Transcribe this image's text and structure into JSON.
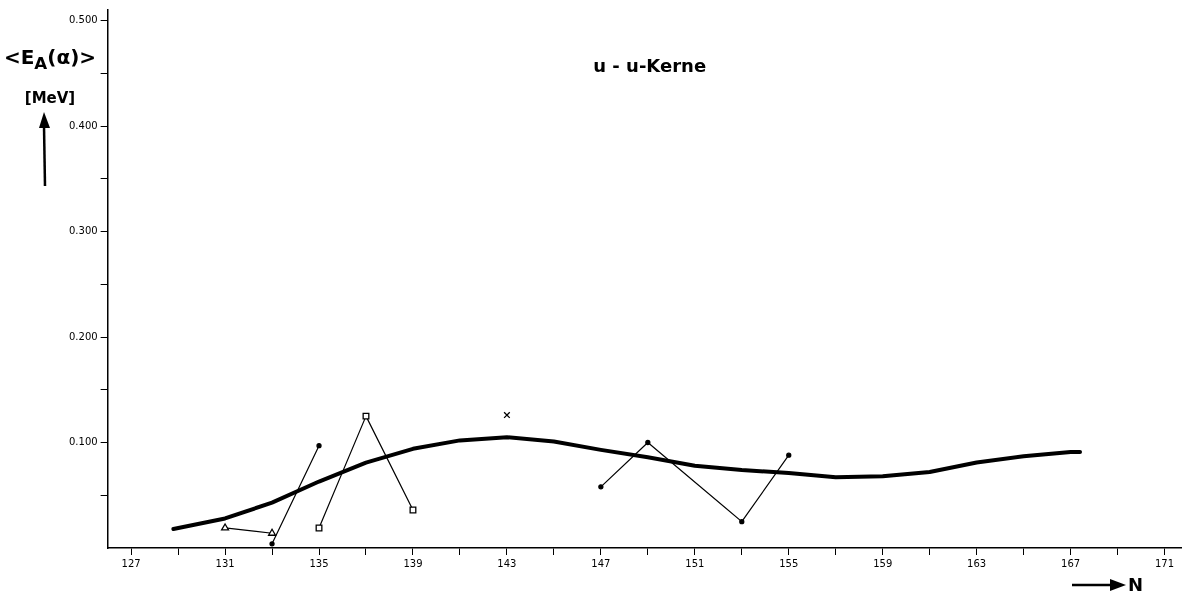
{
  "chart_data": {
    "type": "line",
    "ylabel": "<E$_{A}$(α)> [MeV]",
    "xlabel": "N",
    "annotations": [
      "u - u-Kerne"
    ],
    "xlim": [
      126,
      171.7
    ],
    "ylim": [
      0,
      0.51
    ],
    "xticks": [
      {
        "value": 127,
        "label": "127"
      },
      {
        "value": 129,
        "label": null
      },
      {
        "value": 131,
        "label": "131"
      },
      {
        "value": 133,
        "label": null
      },
      {
        "value": 135,
        "label": "135"
      },
      {
        "value": 137,
        "label": null
      },
      {
        "value": 139,
        "label": "139"
      },
      {
        "value": 141,
        "label": null
      },
      {
        "value": 143,
        "label": "143"
      },
      {
        "value": 145,
        "label": null
      },
      {
        "value": 147,
        "label": "147"
      },
      {
        "value": 149,
        "label": null
      },
      {
        "value": 151,
        "label": "151"
      },
      {
        "value": 153,
        "label": null
      },
      {
        "value": 155,
        "label": "155"
      },
      {
        "value": 157,
        "label": null
      },
      {
        "value": 159,
        "label": "159"
      },
      {
        "value": 161,
        "label": null
      },
      {
        "value": 163,
        "label": "163"
      },
      {
        "value": 165,
        "label": null
      },
      {
        "value": 167,
        "label": "167"
      },
      {
        "value": 169,
        "label": null
      },
      {
        "value": 171,
        "label": "171"
      }
    ],
    "yticks": [
      {
        "value": 0.05,
        "label": null
      },
      {
        "value": 0.1,
        "label": "0.100"
      },
      {
        "value": 0.15,
        "label": null
      },
      {
        "value": 0.2,
        "label": "0.200"
      },
      {
        "value": 0.25,
        "label": null
      },
      {
        "value": 0.3,
        "label": "0.300"
      },
      {
        "value": 0.35,
        "label": null
      },
      {
        "value": 0.4,
        "label": "0.400"
      },
      {
        "value": 0.45,
        "label": null
      },
      {
        "value": 0.5,
        "label": "0.500"
      }
    ],
    "grid": false,
    "legend": false,
    "line_style": "solid",
    "series": [
      {
        "marker": "none",
        "color": "#000000",
        "x": [
          128.8,
          131,
          133,
          135,
          137,
          139,
          141,
          143,
          145,
          147,
          149,
          151,
          153,
          155,
          157,
          159,
          161,
          163,
          165,
          167,
          167.4
        ],
        "values": [
          0.018,
          0.028,
          0.043,
          0.063,
          0.081,
          0.094,
          0.102,
          0.105,
          0.101,
          0.093,
          0.086,
          0.078,
          0.074,
          0.071,
          0.067,
          0.068,
          0.072,
          0.081,
          0.087,
          0.091,
          0.091
        ]
      },
      {
        "type": "line",
        "marker": "triangle",
        "color": "#000000",
        "x": [
          131,
          133
        ],
        "values": [
          0.019,
          0.014
        ]
      },
      {
        "type": "line",
        "marker": "circle",
        "color": "#000000",
        "x": [
          133,
          135
        ],
        "values": [
          0.004,
          0.097
        ]
      },
      {
        "type": "line",
        "marker": "square",
        "color": "#000000",
        "x": [
          135,
          137,
          139
        ],
        "values": [
          0.019,
          0.125,
          0.036
        ]
      },
      {
        "type": "scatter",
        "marker": "cross",
        "color": "#000000",
        "x": [
          143
        ],
        "values": [
          0.126
        ]
      },
      {
        "type": "line",
        "marker": "circle",
        "color": "#000000",
        "x": [
          147,
          149,
          153,
          155
        ],
        "values": [
          0.058,
          0.1,
          0.025,
          0.088
        ]
      }
    ]
  }
}
